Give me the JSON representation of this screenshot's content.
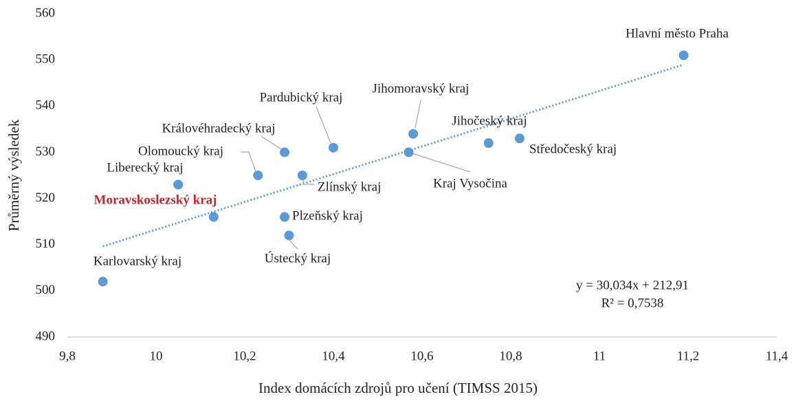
{
  "chart_data": {
    "type": "scatter",
    "x_label": "Index domácích zdrojů pro učení (TIMSS 2015)",
    "y_label": "Průměrný výsledek",
    "labels": [
      "Karlovarský kraj",
      "Liberecký kraj",
      "Moravskoslezský kraj",
      "Olomoucký kraj",
      "Královéhradecký kraj",
      "Plzeňský kraj",
      "Ústecký kraj",
      "Zlínský kraj",
      "Pardubický kraj",
      "Jihomoravský kraj",
      "Kraj Vysočina",
      "Jihočeský kraj",
      "Středočeský kraj",
      "Hlavní město Praha"
    ],
    "x": [
      9.88,
      10.05,
      10.13,
      10.23,
      10.29,
      10.29,
      10.3,
      10.33,
      10.4,
      10.58,
      10.57,
      10.75,
      10.82,
      11.19
    ],
    "values": [
      502,
      523,
      516,
      525,
      530,
      516,
      512,
      525,
      531,
      534,
      530,
      532,
      533,
      551
    ],
    "color": "#5b9bd5",
    "highlight": {
      "index": 2,
      "color": "#c0262d"
    },
    "trendline": {
      "slope": 30.034,
      "intercept": 212.91,
      "equation": "y = 30,034x + 212,91",
      "r2": "R² = 0,7538"
    },
    "xlim": [
      9.8,
      11.4
    ],
    "xticks": [
      {
        "value": 9.8,
        "label": "9,8"
      },
      10,
      {
        "value": 10.2,
        "label": "10,2"
      },
      {
        "value": 10.4,
        "label": "10,4"
      },
      {
        "value": 10.6,
        "label": "10,6"
      },
      {
        "value": 10.8,
        "label": "10,8"
      },
      11,
      {
        "value": 11.2,
        "label": "11,2"
      },
      {
        "value": 11.4,
        "label": "11,4"
      }
    ],
    "ylim": [
      490,
      560
    ],
    "yticks": [
      490,
      500,
      510,
      520,
      530,
      540,
      550,
      560
    ]
  }
}
